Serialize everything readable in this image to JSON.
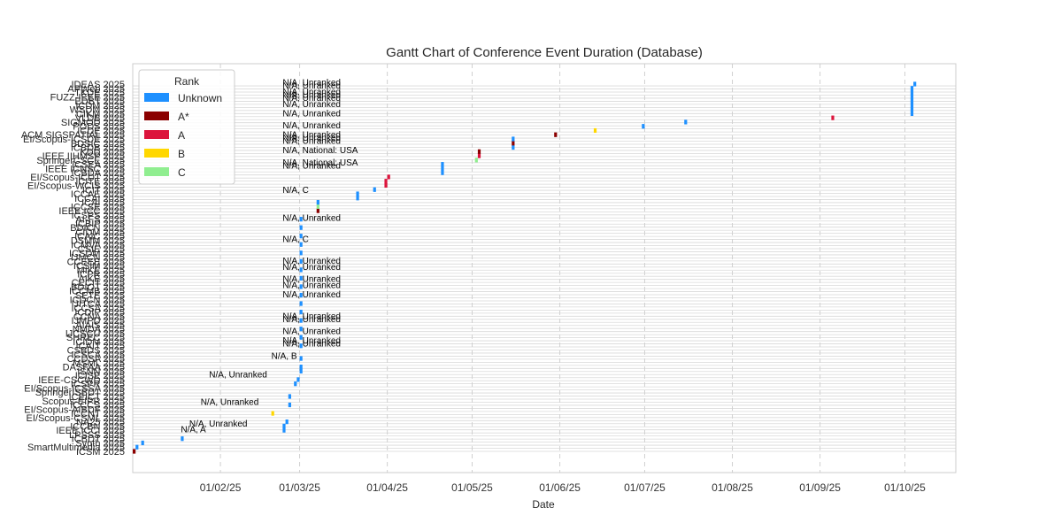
{
  "chart_data": {
    "type": "gantt",
    "title": "Gantt Chart of Conference Event Duration (Database)",
    "xlabel": "Date",
    "ylabel": "",
    "xlim": [
      "2025-01-01",
      "2025-10-19"
    ],
    "x_ticks": [
      {
        "date": "2025-02-01",
        "label": "01/02/25"
      },
      {
        "date": "2025-03-01",
        "label": "01/03/25"
      },
      {
        "date": "2025-04-01",
        "label": "01/04/25"
      },
      {
        "date": "2025-05-01",
        "label": "01/05/25"
      },
      {
        "date": "2025-06-01",
        "label": "01/06/25"
      },
      {
        "date": "2025-07-01",
        "label": "01/07/25"
      },
      {
        "date": "2025-08-01",
        "label": "01/08/25"
      },
      {
        "date": "2025-09-01",
        "label": "01/09/25"
      },
      {
        "date": "2025-10-01",
        "label": "01/10/25"
      }
    ],
    "grid": true,
    "legend": {
      "title": "Rank",
      "placement": "top-left",
      "entries": [
        {
          "label": "Unknown",
          "color": "#1e90ff"
        },
        {
          "label": "A*",
          "color": "#8b0000"
        },
        {
          "label": "A",
          "color": "#dc143c"
        },
        {
          "label": "B",
          "color": "#ffd700"
        },
        {
          "label": "C",
          "color": "#90ee90"
        }
      ]
    },
    "categories_bottom_to_top": [
      "ICSM 2025",
      "SmartMultimedia 2025",
      "Synth 2025",
      "ICBDT 2025",
      "LPSSS 2025",
      "IEEE ICCI 2025",
      "ICCBN 2025",
      "NA25 2025",
      "EI/Scopus-CSML 2025",
      "ICCNT 2025",
      "EI/Scopus-AIBDF 2025",
      "ICCCS 2025",
      "Scopus-EIPR 2025",
      "ICEICT 2025",
      "SpringerISBDT 2025",
      "EI/Scopus-ICSSA 2025",
      "ICSPR 2025",
      "IEEE-CSCWD 2025",
      "ICISE 2025",
      "ISNN 2025",
      "DASFAA 2025",
      "MSML 2025",
      "CCDSA 2025",
      "ICSCA 2025",
      "CSBDS 2025",
      "ICAIT 2025",
      "ICIDM 2025",
      "SHREC 2025",
      "IJCSCU 2025",
      "NMDA 2025",
      "AIAIS 2025",
      "IJMPD 2025",
      "CCNA 2025",
      "ICDIP 2025",
      "ICCSA 2025",
      "IJITCA 2025",
      "ICDCN 2025",
      "SETE 2025",
      "ICCMB 2025",
      "BDIOT 2025",
      "CECIT 2025",
      "AIKE 2025",
      "ICPR 2025",
      "MIKE 2025",
      "ICSIM 2025",
      "CCEEE 2025",
      "IJMCN 2025",
      "ICSDM 2025",
      "CSIE 2025",
      "ICMVA 2025",
      "DSMM 2025",
      "ICAIC 2025",
      "CIDM 2025",
      "BDICN 2025",
      "ICBIP 2025",
      "AI-FS 2025",
      "ICSPS 2025",
      "IEEE ICC 2025",
      "ICCSE 2025",
      "ICAI 2025",
      "ICCAI 2025",
      "ICCAE 2025",
      "ICIT 2025",
      "EI/Scopus-WCIS 2025",
      "ICITE 2025",
      "EI/Scopus-ICDT 2025",
      "ICBDA 2025",
      "IEEE ICNSC 2025",
      "ICSEA 2025",
      "SpringerCSCE 2025",
      "IEEE IIHMSP 2025",
      "KDD 2025",
      "ICBDB 2025",
      "BDSIC 2025",
      "EI/Scopus-ICSDE 2025",
      "ACM SIGSPATIAL 2025",
      "ICDE 2025",
      "PODS 2025",
      "SIGMOD 2025",
      "VLDB 2025",
      "CIKM 2025",
      "WSDM 2025",
      "ICDM 2025",
      "EDBT 2025",
      "FUZZ-IEEE 2025",
      "TKDE 2025",
      "APWeb 2025",
      "IDEAS 2025"
    ],
    "tasks": [
      {
        "name": "ICSM 2025",
        "start": "2025-01-01",
        "end": "2025-01-02",
        "rank": "A*"
      },
      {
        "name": "SmartMultimedia 2025",
        "start": "2025-01-02",
        "end": "2025-01-03",
        "rank": "Unknown"
      },
      {
        "name": "Synth 2025",
        "start": "2025-01-04",
        "end": "2025-01-05",
        "rank": "Unknown"
      },
      {
        "name": "ICBDT 2025",
        "start": "2025-01-18",
        "end": "2025-01-19",
        "rank": "Unknown"
      },
      {
        "name": "ICCNT 2025",
        "start": "2025-02-19",
        "end": "2025-02-20",
        "rank": "B"
      },
      {
        "name": "IEEE ICCI 2025",
        "start": "2025-02-23",
        "end": "2025-02-24",
        "rank": "Unknown"
      },
      {
        "name": "ICCBN 2025",
        "start": "2025-02-23",
        "end": "2025-02-24",
        "rank": "Unknown"
      },
      {
        "name": "NA25 2025",
        "start": "2025-02-24",
        "end": "2025-02-25",
        "rank": "Unknown"
      },
      {
        "name": "ICCCS 2025",
        "start": "2025-02-25",
        "end": "2025-02-26",
        "rank": "Unknown"
      },
      {
        "name": "ICEICT 2025",
        "start": "2025-02-25",
        "end": "2025-02-26",
        "rank": "Unknown"
      },
      {
        "name": "ICSPR 2025",
        "start": "2025-02-27",
        "end": "2025-02-28",
        "rank": "Unknown"
      },
      {
        "name": "IEEE-CSCWD 2025",
        "start": "2025-02-28",
        "end": "2025-03-01",
        "rank": "Unknown"
      },
      {
        "name": "ISNN 2025",
        "start": "2025-03-01",
        "end": "2025-03-02",
        "rank": "Unknown"
      },
      {
        "name": "DASFAA 2025",
        "start": "2025-03-01",
        "end": "2025-03-02",
        "rank": "Unknown"
      },
      {
        "name": "CCDSA 2025",
        "start": "2025-03-01",
        "end": "2025-03-02",
        "rank": "Unknown"
      },
      {
        "name": "ICAIT 2025",
        "start": "2025-03-01",
        "end": "2025-03-02",
        "rank": "Unknown"
      },
      {
        "name": "SHREC 2025",
        "start": "2025-03-01",
        "end": "2025-03-02",
        "rank": "Unknown"
      },
      {
        "name": "NMDA 2025",
        "start": "2025-03-01",
        "end": "2025-03-02",
        "rank": "Unknown"
      },
      {
        "name": "IJMPD 2025",
        "start": "2025-03-01",
        "end": "2025-03-02",
        "rank": "Unknown"
      },
      {
        "name": "ICDIP 2025",
        "start": "2025-03-01",
        "end": "2025-03-02",
        "rank": "Unknown"
      },
      {
        "name": "IJITCA 2025",
        "start": "2025-03-01",
        "end": "2025-03-02",
        "rank": "Unknown"
      },
      {
        "name": "SETE 2025",
        "start": "2025-03-01",
        "end": "2025-03-02",
        "rank": "Unknown"
      },
      {
        "name": "BDIOT 2025",
        "start": "2025-03-01",
        "end": "2025-03-02",
        "rank": "Unknown"
      },
      {
        "name": "AIKE 2025",
        "start": "2025-03-01",
        "end": "2025-03-02",
        "rank": "Unknown"
      },
      {
        "name": "MIKE 2025",
        "start": "2025-03-01",
        "end": "2025-03-02",
        "rank": "Unknown"
      },
      {
        "name": "CCEEE 2025",
        "start": "2025-03-01",
        "end": "2025-03-02",
        "rank": "Unknown"
      },
      {
        "name": "ICSDM 2025",
        "start": "2025-03-01",
        "end": "2025-03-02",
        "rank": "Unknown"
      },
      {
        "name": "ICMVA 2025",
        "start": "2025-03-01",
        "end": "2025-03-02",
        "rank": "Unknown"
      },
      {
        "name": "ICAIC 2025",
        "start": "2025-03-01",
        "end": "2025-03-02",
        "rank": "Unknown"
      },
      {
        "name": "BDICN 2025",
        "start": "2025-03-01",
        "end": "2025-03-02",
        "rank": "Unknown"
      },
      {
        "name": "AI-FS 2025",
        "start": "2025-03-01",
        "end": "2025-03-02",
        "rank": "Unknown"
      },
      {
        "name": "IEEE ICC 2025",
        "start": "2025-03-07",
        "end": "2025-03-08",
        "rank": "A*"
      },
      {
        "name": "ICCSE 2025",
        "start": "2025-03-07",
        "end": "2025-03-08",
        "rank": "C"
      },
      {
        "name": "ICAI 2025",
        "start": "2025-03-07",
        "end": "2025-03-08",
        "rank": "Unknown"
      },
      {
        "name": "ICCAI 2025",
        "start": "2025-03-21",
        "end": "2025-03-22",
        "rank": "Unknown"
      },
      {
        "name": "ICCAE 2025",
        "start": "2025-03-21",
        "end": "2025-03-22",
        "rank": "Unknown"
      },
      {
        "name": "ICIT 2025",
        "start": "2025-03-27",
        "end": "2025-03-28",
        "rank": "Unknown"
      },
      {
        "name": "EI/Scopus-WCIS 2025",
        "start": "2025-03-31",
        "end": "2025-04-01",
        "rank": "A"
      },
      {
        "name": "ICITE 2025",
        "start": "2025-03-31",
        "end": "2025-04-01",
        "rank": "A"
      },
      {
        "name": "EI/Scopus-ICDT 2025",
        "start": "2025-04-01",
        "end": "2025-04-02",
        "rank": "A"
      },
      {
        "name": "ICBDA 2025",
        "start": "2025-04-20",
        "end": "2025-04-21",
        "rank": "Unknown"
      },
      {
        "name": "IEEE ICNSC 2025",
        "start": "2025-04-20",
        "end": "2025-04-21",
        "rank": "Unknown"
      },
      {
        "name": "ICSEA 2025",
        "start": "2025-04-20",
        "end": "2025-04-21",
        "rank": "Unknown"
      },
      {
        "name": "SpringerCSCE 2025",
        "start": "2025-05-02",
        "end": "2025-05-03",
        "rank": "C"
      },
      {
        "name": "IEEE IIHMSP 2025",
        "start": "2025-05-03",
        "end": "2025-05-04",
        "rank": "A"
      },
      {
        "name": "KDD 2025",
        "start": "2025-05-03",
        "end": "2025-05-04",
        "rank": "A*"
      },
      {
        "name": "ICBDB 2025",
        "start": "2025-05-15",
        "end": "2025-05-16",
        "rank": "Unknown"
      },
      {
        "name": "BDSIC 2025",
        "start": "2025-05-15",
        "end": "2025-05-16",
        "rank": "A*"
      },
      {
        "name": "EI/Scopus-ICSDE 2025",
        "start": "2025-05-15",
        "end": "2025-05-16",
        "rank": "Unknown"
      },
      {
        "name": "ACM SIGSPATIAL 2025",
        "start": "2025-05-30",
        "end": "2025-05-31",
        "rank": "A*"
      },
      {
        "name": "ICDE 2025",
        "start": "2025-06-13",
        "end": "2025-06-14",
        "rank": "B"
      },
      {
        "name": "PODS 2025",
        "start": "2025-06-30",
        "end": "2025-07-01",
        "rank": "Unknown"
      },
      {
        "name": "SIGMOD 2025",
        "start": "2025-07-15",
        "end": "2025-07-16",
        "rank": "Unknown"
      },
      {
        "name": "VLDB 2025",
        "start": "2025-09-05",
        "end": "2025-09-06",
        "rank": "A"
      },
      {
        "name": "CIKM 2025",
        "start": "2025-10-03",
        "end": "2025-10-04",
        "rank": "Unknown"
      },
      {
        "name": "WSDM 2025",
        "start": "2025-10-03",
        "end": "2025-10-04",
        "rank": "Unknown"
      },
      {
        "name": "ICDM 2025",
        "start": "2025-10-03",
        "end": "2025-10-04",
        "rank": "Unknown"
      },
      {
        "name": "EDBT 2025",
        "start": "2025-10-03",
        "end": "2025-10-04",
        "rank": "Unknown"
      },
      {
        "name": "FUZZ-IEEE 2025",
        "start": "2025-10-03",
        "end": "2025-10-04",
        "rank": "Unknown"
      },
      {
        "name": "TKDE 2025",
        "start": "2025-10-03",
        "end": "2025-10-04",
        "rank": "Unknown"
      },
      {
        "name": "APWeb 2025",
        "start": "2025-10-03",
        "end": "2025-10-04",
        "rank": "Unknown"
      },
      {
        "name": "IDEAS 2025",
        "start": "2025-10-04",
        "end": "2025-10-05",
        "rank": "Unknown"
      }
    ],
    "annotations": [
      {
        "text": "N/A, Unranked",
        "date": "2025-02-23",
        "y_index": 120
      },
      {
        "text": "N/A, Unranked",
        "date": "2025-02-23",
        "y_index": 119
      },
      {
        "text": "N/A, Unranked",
        "date": "2025-02-23",
        "y_index": 117
      },
      {
        "text": "N/A, Unranked",
        "date": "2025-02-23",
        "y_index": 116
      },
      {
        "text": "N/A, Unranked",
        "date": "2025-02-23",
        "y_index": 115
      },
      {
        "text": "N/A, Unranked",
        "date": "2025-02-23",
        "y_index": 113
      },
      {
        "text": "N/A, Unranked",
        "date": "2025-02-23",
        "y_index": 110
      },
      {
        "text": "N/A, Unranked",
        "date": "2025-02-23",
        "y_index": 106
      },
      {
        "text": "N/A, Unranked",
        "date": "2025-02-23",
        "y_index": 103
      },
      {
        "text": "N/A, Unranked",
        "date": "2025-02-23",
        "y_index": 102
      },
      {
        "text": "N/A, Unranked",
        "date": "2025-02-23",
        "y_index": 101
      },
      {
        "text": "N/A, National: USA",
        "date": "2025-02-23",
        "y_index": 98
      },
      {
        "text": "N/A, National: USA",
        "date": "2025-02-23",
        "y_index": 94
      },
      {
        "text": "N/A, Unranked",
        "date": "2025-02-23",
        "y_index": 93
      },
      {
        "text": "N/A, C",
        "date": "2025-02-23",
        "y_index": 85
      },
      {
        "text": "N/A, Unranked",
        "date": "2025-02-23",
        "y_index": 76
      },
      {
        "text": "N/A, C",
        "date": "2025-02-23",
        "y_index": 69
      },
      {
        "text": "N/A, Unranked",
        "date": "2025-02-23",
        "y_index": 62
      },
      {
        "text": "N/A, Unranked",
        "date": "2025-02-23",
        "y_index": 60
      },
      {
        "text": "N/A, Unranked",
        "date": "2025-02-23",
        "y_index": 56
      },
      {
        "text": "N/A, Unranked",
        "date": "2025-02-23",
        "y_index": 54
      },
      {
        "text": "N/A, Unranked",
        "date": "2025-02-23",
        "y_index": 51
      },
      {
        "text": "N/A, Unranked",
        "date": "2025-02-23",
        "y_index": 44
      },
      {
        "text": "N/A, Unranked",
        "date": "2025-02-23",
        "y_index": 43
      },
      {
        "text": "N/A, Unranked",
        "date": "2025-02-23",
        "y_index": 39
      },
      {
        "text": "N/A, Unranked",
        "date": "2025-02-23",
        "y_index": 36
      },
      {
        "text": "N/A, Unranked",
        "date": "2025-02-23",
        "y_index": 35
      },
      {
        "text": "N/A, B",
        "date": "2025-02-19",
        "y_index": 31
      },
      {
        "text": "N/A, Unranked",
        "date": "2025-01-28",
        "y_index": 25
      },
      {
        "text": "N/A, Unranked",
        "date": "2025-01-25",
        "y_index": 16
      },
      {
        "text": "N/A, Unranked",
        "date": "2025-01-21",
        "y_index": 9
      },
      {
        "text": "N/A, A",
        "date": "2025-01-18",
        "y_index": 7
      }
    ]
  }
}
